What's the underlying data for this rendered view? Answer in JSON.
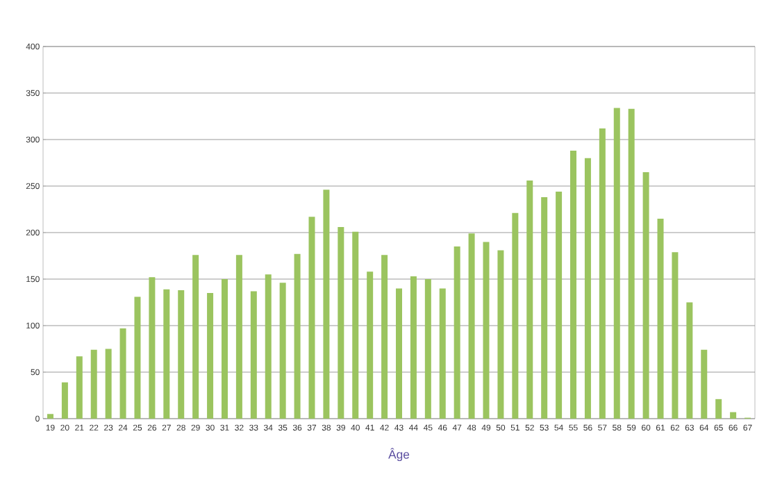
{
  "chart_data": {
    "type": "bar",
    "xlabel": "Âge",
    "categories": [
      "19",
      "20",
      "21",
      "22",
      "23",
      "24",
      "25",
      "26",
      "27",
      "28",
      "29",
      "30",
      "31",
      "32",
      "33",
      "34",
      "35",
      "36",
      "37",
      "38",
      "39",
      "40",
      "41",
      "42",
      "43",
      "44",
      "45",
      "46",
      "47",
      "48",
      "49",
      "50",
      "51",
      "52",
      "53",
      "54",
      "55",
      "56",
      "57",
      "58",
      "59",
      "60",
      "61",
      "62",
      "63",
      "64",
      "65",
      "66",
      "67"
    ],
    "values": [
      5,
      39,
      67,
      74,
      75,
      97,
      131,
      152,
      139,
      138,
      176,
      135,
      150,
      176,
      137,
      155,
      146,
      177,
      217,
      246,
      206,
      201,
      158,
      176,
      140,
      153,
      150,
      140,
      185,
      199,
      190,
      181,
      221,
      256,
      238,
      244,
      288,
      280,
      312,
      334,
      333,
      265,
      215,
      179,
      125,
      74,
      21,
      7,
      1
    ],
    "color": "#9bc45f",
    "ylim": [
      0,
      400
    ],
    "yticks": [
      0,
      50,
      100,
      150,
      200,
      250,
      300,
      350,
      400
    ],
    "grid": "y"
  }
}
